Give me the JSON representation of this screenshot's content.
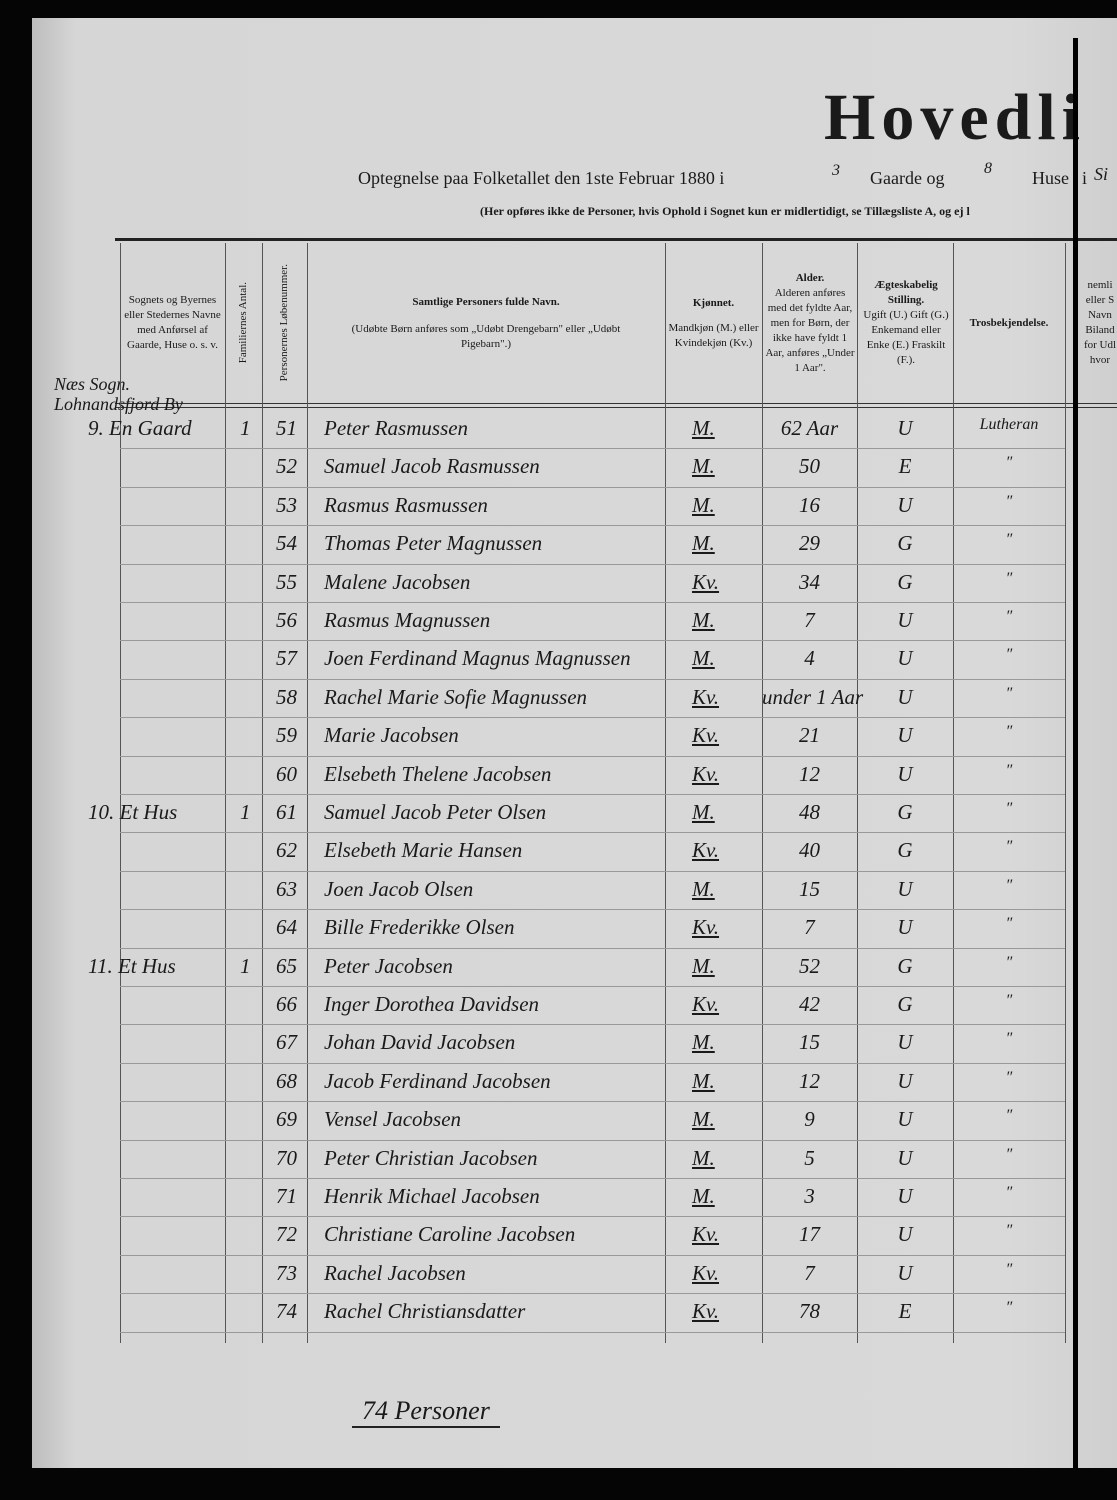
{
  "header": {
    "title": "Hovedli",
    "subtitle": {
      "prefix": "Optegnelse paa Folketallet den 1ste Februar 1880 i",
      "gaarde": "3",
      "gaarde_label": "Gaarde og",
      "huse": "8",
      "huse_label": "Huse",
      "i": "i",
      "parish": "Si"
    },
    "note": "(Her opføres ikke de Personer, hvis Ophold i Sognet kun er midlertidigt, se Tillægsliste A, og ej l"
  },
  "table": {
    "columns": {
      "place": "Sognets og Byernes eller Stedernes Navne med Anførsel af Gaarde, Huse o. s. v.",
      "families": "Familiernes Antal.",
      "number": "Personernes Løbenummer.",
      "name_title": "Samtlige Personers fulde Navn.",
      "name_note": "(Udøbte Børn anføres som „Udøbt Drengebarn\" eller „Udøbt Pigebarn\".)",
      "sex_title": "Kjønnet.",
      "sex_note": "Mandkjøn (M.) eller Kvindekjøn (Kv.)",
      "age_title": "Alder.",
      "age_note": "Alderen anføres med det fyldte Aar, men for Børn, der ikke have fyldt 1 Aar, anføres „Under 1 Aar\".",
      "marital_title": "Ægteskabelig Stilling.",
      "marital_note": "Ugift (U.) Gift (G.) Enkemand eller Enke (E.) Fraskilt (F.).",
      "religion": "Trosbekjendelse.",
      "partial": "nemli eller S Navn Biland for Udl hvor"
    },
    "parish": "Næs Sogn. Lohnandsfjord By",
    "rows": [
      {
        "place": "9. En Gaard",
        "families": "1",
        "number": 51,
        "name": "Peter Rasmussen",
        "sex": "M.",
        "age": "62 Aar",
        "marital": "U",
        "religion": "Lutheran"
      },
      {
        "number": 52,
        "name": "Samuel Jacob Rasmussen",
        "sex": "M.",
        "age": "50",
        "marital": "E",
        "religion": "″"
      },
      {
        "number": 53,
        "name": "Rasmus Rasmussen",
        "sex": "M.",
        "age": "16",
        "marital": "U",
        "religion": "″"
      },
      {
        "number": 54,
        "name": "Thomas Peter Magnussen",
        "sex": "M.",
        "age": "29",
        "marital": "G",
        "religion": "″"
      },
      {
        "number": 55,
        "name": "Malene Jacobsen",
        "sex": "Kv.",
        "age": "34",
        "marital": "G",
        "religion": "″"
      },
      {
        "number": 56,
        "name": "Rasmus Magnussen",
        "sex": "M.",
        "age": "7",
        "marital": "U",
        "religion": "″"
      },
      {
        "number": 57,
        "name": "Joen Ferdinand Magnus Magnussen",
        "sex": "M.",
        "age": "4",
        "marital": "U",
        "religion": "″"
      },
      {
        "number": 58,
        "name": "Rachel Marie Sofie Magnussen",
        "sex": "Kv.",
        "age": "under 1 Aar",
        "marital": "U",
        "religion": "″"
      },
      {
        "number": 59,
        "name": "Marie Jacobsen",
        "sex": "Kv.",
        "age": "21",
        "marital": "U",
        "religion": "″"
      },
      {
        "number": 60,
        "name": "Elsebeth Thelene Jacobsen",
        "sex": "Kv.",
        "age": "12",
        "marital": "U",
        "religion": "″"
      },
      {
        "place": "10. Et Hus",
        "families": "1",
        "number": 61,
        "name": "Samuel Jacob Peter Olsen",
        "sex": "M.",
        "age": "48",
        "marital": "G",
        "religion": "″"
      },
      {
        "number": 62,
        "name": "Elsebeth Marie Hansen",
        "sex": "Kv.",
        "age": "40",
        "marital": "G",
        "religion": "″"
      },
      {
        "number": 63,
        "name": "Joen Jacob Olsen",
        "sex": "M.",
        "age": "15",
        "marital": "U",
        "religion": "″"
      },
      {
        "number": 64,
        "name": "Bille Frederikke Olsen",
        "sex": "Kv.",
        "age": "7",
        "marital": "U",
        "religion": "″"
      },
      {
        "place": "11. Et Hus",
        "families": "1",
        "number": 65,
        "name": "Peter Jacobsen",
        "sex": "M.",
        "age": "52",
        "marital": "G",
        "religion": "″"
      },
      {
        "number": 66,
        "name": "Inger Dorothea Davidsen",
        "sex": "Kv.",
        "age": "42",
        "marital": "G",
        "religion": "″"
      },
      {
        "number": 67,
        "name": "Johan David Jacobsen",
        "sex": "M.",
        "age": "15",
        "marital": "U",
        "religion": "″"
      },
      {
        "number": 68,
        "name": "Jacob Ferdinand Jacobsen",
        "sex": "M.",
        "age": "12",
        "marital": "U",
        "religion": "″"
      },
      {
        "number": 69,
        "name": "Vensel Jacobsen",
        "sex": "M.",
        "age": "9",
        "marital": "U",
        "religion": "″"
      },
      {
        "number": 70,
        "name": "Peter Christian Jacobsen",
        "sex": "M.",
        "age": "5",
        "marital": "U",
        "religion": "″"
      },
      {
        "number": 71,
        "name": "Henrik Michael Jacobsen",
        "sex": "M.",
        "age": "3",
        "marital": "U",
        "religion": "″"
      },
      {
        "number": 72,
        "name": "Christiane Caroline Jacobsen",
        "sex": "Kv.",
        "age": "17",
        "marital": "U",
        "religion": "″"
      },
      {
        "number": 73,
        "name": "Rachel Jacobsen",
        "sex": "Kv.",
        "age": "7",
        "marital": "U",
        "religion": "″"
      },
      {
        "number": 74,
        "name": "Rachel Christiansdatter",
        "sex": "Kv.",
        "age": "78",
        "marital": "E",
        "religion": "″"
      }
    ]
  },
  "footer": {
    "total": "74 Personer"
  }
}
